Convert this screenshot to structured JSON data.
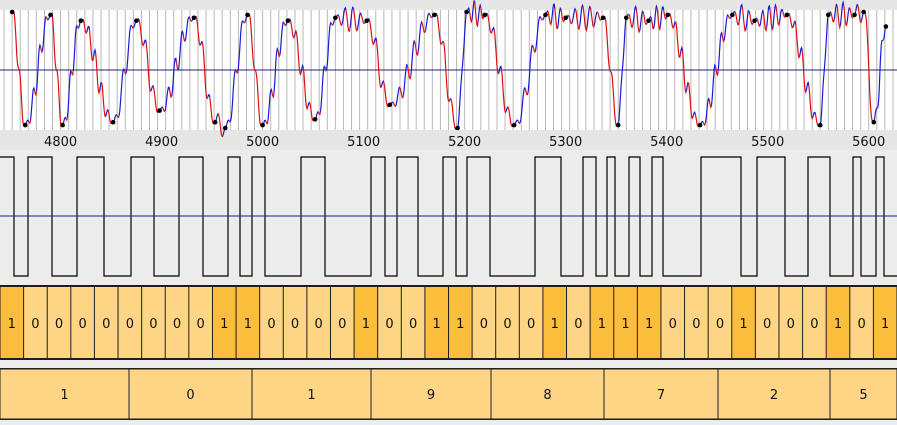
{
  "chart_data": [
    {
      "type": "line",
      "title": "",
      "xlabel": "",
      "ylabel": "",
      "x_range": [
        4740,
        5628
      ],
      "x_ticks": [
        "4800",
        "4900",
        "5000",
        "5100",
        "5200",
        "5300",
        "5400",
        "5500",
        "5600"
      ],
      "x_tick_values": [
        4800,
        4900,
        5000,
        5100,
        5200,
        5300,
        5400,
        5500,
        5600
      ],
      "grid": "vertical lines about every 8 samples",
      "series_colors": [
        "#1a1ad8",
        "#e01010"
      ],
      "baseline_color": "#20207a",
      "peak_marker_color": "#000000",
      "peaks": [
        {
          "x": 4752,
          "y": 1.0
        },
        {
          "x": 4765,
          "y": -0.95
        },
        {
          "x": 4790,
          "y": 0.95
        },
        {
          "x": 4802,
          "y": -0.95
        },
        {
          "x": 4820,
          "y": 0.85
        },
        {
          "x": 4852,
          "y": -0.9
        },
        {
          "x": 4875,
          "y": 0.85
        },
        {
          "x": 4898,
          "y": -0.7
        },
        {
          "x": 4932,
          "y": 0.9
        },
        {
          "x": 4953,
          "y": -0.9
        },
        {
          "x": 4963,
          "y": -1.0
        },
        {
          "x": 4985,
          "y": 0.95
        },
        {
          "x": 5000,
          "y": -0.95
        },
        {
          "x": 5025,
          "y": 0.85
        },
        {
          "x": 5052,
          "y": -0.85
        },
        {
          "x": 5072,
          "y": 0.9
        },
        {
          "x": 5103,
          "y": 0.85
        },
        {
          "x": 5126,
          "y": -0.6
        },
        {
          "x": 5170,
          "y": 0.95
        },
        {
          "x": 5193,
          "y": -1.0
        },
        {
          "x": 5202,
          "y": 1.0
        },
        {
          "x": 5220,
          "y": 0.95
        },
        {
          "x": 5249,
          "y": -0.95
        },
        {
          "x": 5280,
          "y": 0.95
        },
        {
          "x": 5300,
          "y": 0.9
        },
        {
          "x": 5337,
          "y": 0.9
        },
        {
          "x": 5352,
          "y": -0.95
        },
        {
          "x": 5360,
          "y": 0.9
        },
        {
          "x": 5382,
          "y": 0.85
        },
        {
          "x": 5401,
          "y": 0.95
        },
        {
          "x": 5433,
          "y": -0.95
        },
        {
          "x": 5465,
          "y": 0.95
        },
        {
          "x": 5487,
          "y": 0.85
        },
        {
          "x": 5519,
          "y": 0.95
        },
        {
          "x": 5552,
          "y": -0.95
        },
        {
          "x": 5560,
          "y": 0.95
        },
        {
          "x": 5586,
          "y": 0.95
        },
        {
          "x": 5595,
          "y": 1.0
        },
        {
          "x": 5605,
          "y": -0.9
        },
        {
          "x": 5617,
          "y": 0.75
        }
      ]
    },
    {
      "type": "line",
      "title": "",
      "line_color": "#000000",
      "baseline_color": "#20209a",
      "levels": [
        1,
        0,
        1,
        0,
        1,
        0,
        1,
        0,
        1,
        0,
        1,
        0,
        1,
        0,
        1,
        0,
        1,
        0,
        1,
        0,
        1,
        0,
        1,
        0,
        1,
        0,
        1,
        0,
        1,
        0,
        1,
        0,
        1,
        0,
        1,
        0,
        1,
        0,
        1,
        0,
        1,
        0,
        1,
        0
      ],
      "transitions": [
        14,
        28,
        52,
        77,
        104,
        131,
        154,
        179,
        203,
        228,
        240,
        252,
        265,
        301,
        325,
        371,
        385,
        397,
        418,
        443,
        456,
        467,
        490,
        535,
        561,
        583,
        596,
        607,
        615,
        629,
        640,
        652,
        663,
        701,
        741,
        757,
        785,
        808,
        830,
        853,
        861,
        876,
        884,
        897
      ]
    },
    {
      "type": "table",
      "cell_colors": {
        "1": "#fbbd3c",
        "0": "#fdd585"
      },
      "bits": [
        "1",
        "0",
        "0",
        "0",
        "0",
        "0",
        "0",
        "0",
        "0",
        "1",
        "1",
        "0",
        "0",
        "0",
        "0",
        "1",
        "0",
        "0",
        "1",
        "1",
        "0",
        "0",
        "0",
        "1",
        "0",
        "1",
        "1",
        "1",
        "0",
        "0",
        "0",
        "1",
        "0",
        "0",
        "0",
        "1",
        "0",
        "1"
      ]
    },
    {
      "type": "table",
      "cell_color": "#fdd585",
      "digits": [
        "1",
        "0",
        "1",
        "9",
        "8",
        "7",
        "2",
        "5"
      ]
    }
  ]
}
